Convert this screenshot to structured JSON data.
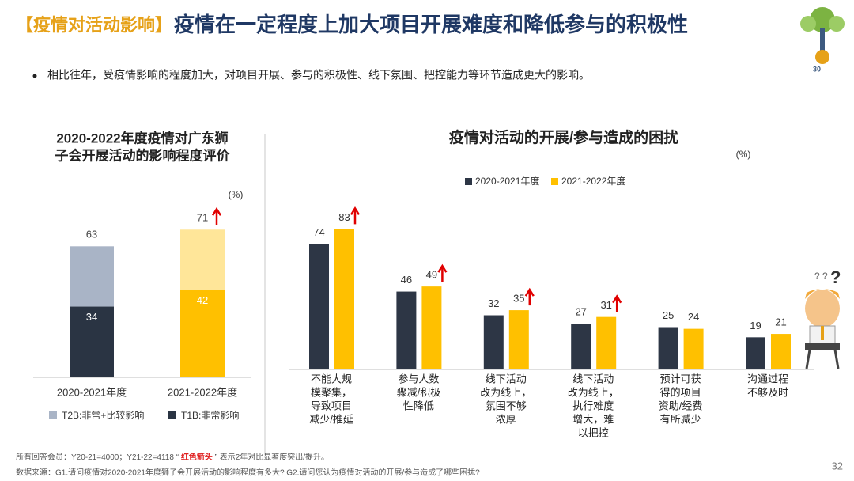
{
  "header": {
    "tag": "【疫情对活动影响】",
    "title": "疫情在一定程度上加大项目开展难度和降低参与的积极性",
    "bullet": "相比往年，受疫情影响的程度加大，对项目开展、参与的积极性、线下氛围、把控能力等环节造成更大的影响。"
  },
  "chart_data": [
    {
      "type": "overlap_bar",
      "title": [
        "2020-2022年度疫情对广东狮",
        "子会开展活动的影响程度评价"
      ],
      "unit": "(%)",
      "categories": [
        "2020-2021年度",
        "2021-2022年度"
      ],
      "series": [
        {
          "name": "T2B:非常+比较影响",
          "color": "#a9b4c6",
          "bar_colors": [
            "#a9b4c6",
            "#ffe699"
          ],
          "label_color": "#444444",
          "values": [
            63,
            71
          ]
        },
        {
          "name": "T1B:非常影响",
          "color": "#2a3443",
          "bar_colors": [
            "#2a3443",
            "#ffc000"
          ],
          "label_color": "#ffffff",
          "values": [
            34,
            42
          ]
        }
      ],
      "highlight": [
        false,
        true
      ],
      "ylim": [
        0,
        100
      ]
    },
    {
      "type": "grouped_bar",
      "title": "疫情对活动的开展/参与造成的困扰",
      "unit": "(%)",
      "categories": [
        [
          "不能大规",
          "模聚集，",
          "导致项目",
          "减少/推延"
        ],
        [
          "参与人数",
          "骤减/积极",
          "性降低"
        ],
        [
          "线下活动",
          "改为线上，",
          "氛围不够",
          "浓厚"
        ],
        [
          "线下活动",
          "改为线上，",
          "执行难度",
          "增大，难",
          "以把控"
        ],
        [
          "预计可获",
          "得的项目",
          "资助/经费",
          "有所减少"
        ],
        [
          "沟通过程",
          "不够及时"
        ]
      ],
      "series": [
        {
          "name": "2020-2021年度",
          "color": "#2d3645",
          "values": [
            74,
            46,
            32,
            27,
            25,
            19
          ]
        },
        {
          "name": "2021-2022年度",
          "color": "#ffc000",
          "values": [
            83,
            49,
            35,
            31,
            24,
            21
          ]
        }
      ],
      "highlight": [
        true,
        true,
        true,
        true,
        false,
        false
      ],
      "ylim": [
        0,
        100
      ]
    }
  ],
  "footer": {
    "note_prefix": "所有回答会员：Y20-21=4000；Y21-22=4118  “ ",
    "note_highlight": "红色箭头",
    "note_suffix": " ” 表示2年对比显著度突出/提升。",
    "source": "数据来源：G1.请问疫情对2020-2021年度狮子会开展活动的影响程度有多大? G2.请问您认为疫情对活动的开展/参与造成了哪些困扰?",
    "page": "32"
  }
}
